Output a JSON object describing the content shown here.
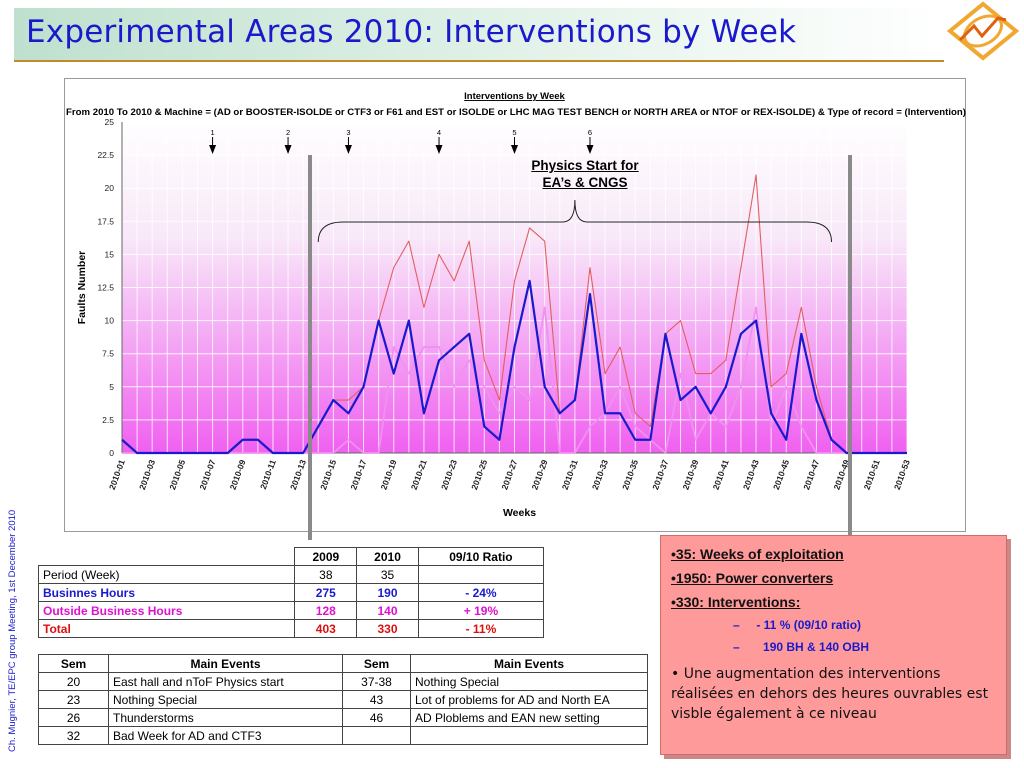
{
  "slide": {
    "title": "Experimental Areas 2010: Interventions by Week",
    "side_note": "Ch. Mugnier, TE/EPC group Meeting, 1st December 2010"
  },
  "colors": {
    "title": "#1a1acc",
    "series_2010": "#1a1acc",
    "series_total": "#e06060",
    "series_obh": "#f090f0",
    "notes_bg": "#ff9a9a"
  },
  "chart_data": {
    "type": "line",
    "title": "Interventions by Week",
    "subtitle": "From 2010 To 2010 & Machine = (AD or BOOSTER-ISOLDE or CTF3 or F61 and EST or ISOLDE or LHC MAG TEST BENCH or NORTH AREA or NTOF or REX-ISOLDE) & Type of record = (Intervention)",
    "xlabel": "Weeks",
    "ylabel": "Faults Number",
    "ylim": [
      0,
      25
    ],
    "yticks": [
      "0",
      "2.5",
      "5",
      "7.5",
      "10",
      "12.5",
      "15",
      "17.5",
      "20",
      "22.5",
      "25"
    ],
    "xtick_labels": [
      "2010-01",
      "2010-03",
      "2010-05",
      "2010-07",
      "2010-09",
      "2010-11",
      "2010-13",
      "2010-15",
      "2010-17",
      "2010-19",
      "2010-21",
      "2010-23",
      "2010-25",
      "2010-27",
      "2010-29",
      "2010-31",
      "2010-33",
      "2010-35",
      "2010-37",
      "2010-39",
      "2010-41",
      "2010-43",
      "2010-45",
      "2010-47",
      "2010-49",
      "2010-51",
      "2010-53"
    ],
    "x": [
      1,
      2,
      3,
      4,
      5,
      6,
      7,
      8,
      9,
      10,
      11,
      12,
      13,
      14,
      15,
      16,
      17,
      18,
      19,
      20,
      21,
      22,
      23,
      24,
      25,
      26,
      27,
      28,
      29,
      30,
      31,
      32,
      33,
      34,
      35,
      36,
      37,
      38,
      39,
      40,
      41,
      42,
      43,
      44,
      45,
      46,
      47,
      48,
      49,
      50,
      51,
      52,
      53
    ],
    "series": [
      {
        "name": "",
        "color": "#1a1acc",
        "width": 2.2,
        "values": [
          1,
          0,
          0,
          0,
          0,
          0,
          0,
          0,
          1,
          1,
          0,
          0,
          0,
          2,
          4,
          3,
          5,
          10,
          6,
          10,
          3,
          7,
          8,
          9,
          2,
          1,
          8,
          13,
          5,
          3,
          4,
          12,
          3,
          3,
          1,
          1,
          9,
          4,
          5,
          3,
          5,
          9,
          10,
          3,
          1,
          9,
          4,
          1,
          0,
          0,
          0,
          0,
          0
        ]
      },
      {
        "name": "",
        "color": "#e06060",
        "width": 1.1,
        "values": [
          1,
          0,
          0,
          0,
          0,
          0,
          0,
          0,
          1,
          1,
          0,
          0,
          0,
          2,
          4,
          4,
          5,
          10,
          14,
          16,
          11,
          15,
          13,
          16,
          7,
          4,
          13,
          17,
          16,
          3,
          4,
          14,
          6,
          8,
          3,
          2,
          9,
          10,
          6,
          6,
          7,
          14,
          21,
          5,
          6,
          11,
          5,
          1,
          0,
          0,
          0,
          0,
          0
        ]
      },
      {
        "name": "",
        "color": "#f090f0",
        "width": 1.8,
        "values": [
          0,
          0,
          0,
          0,
          0,
          0,
          0,
          0,
          0,
          0,
          0,
          0,
          0,
          0,
          0,
          1,
          0,
          0,
          8,
          6,
          8,
          8,
          5,
          7,
          5,
          3,
          5,
          4,
          11,
          0,
          0,
          2,
          3,
          5,
          2,
          1,
          0,
          6,
          1,
          3,
          2,
          5,
          11,
          2,
          5,
          2,
          0,
          0,
          0,
          0,
          0,
          0,
          0
        ]
      }
    ],
    "week_markers": [
      "1",
      "2",
      "3",
      "4",
      "5",
      "6"
    ],
    "week_marker_x": [
      7,
      12,
      16,
      22,
      27,
      32
    ],
    "grid": true,
    "annotation": "Physics Start for EA’s & CNGS"
  },
  "annotation": {
    "line1": "Physics Start for",
    "line2": "EA’s & CNGS"
  },
  "table1": {
    "headers": [
      "",
      "2009",
      "2010",
      "09/10 Ratio"
    ],
    "rows": [
      {
        "label": "Period (Week)",
        "v2009": "38",
        "v2010": "35",
        "ratio": ""
      },
      {
        "label": "Businnes Hours",
        "v2009": "275",
        "v2010": "190",
        "ratio": "- 24%"
      },
      {
        "label": "Outside Business Hours",
        "v2009": "128",
        "v2010": "140",
        "ratio": "+ 19%"
      },
      {
        "label": "Total",
        "v2009": "403",
        "v2010": "330",
        "ratio": "- 11%"
      }
    ]
  },
  "table2": {
    "headers": [
      "Sem",
      "Main Events",
      "Sem",
      "Main Events"
    ],
    "rows": [
      {
        "sem1": "20",
        "ev1": "East hall and nToF Physics start",
        "sem2": "37-38",
        "ev2": "Nothing Special"
      },
      {
        "sem1": "23",
        "ev1": "Nothing Special",
        "sem2": "43",
        "ev2": "Lot of problems for AD and North EA"
      },
      {
        "sem1": "26",
        "ev1": "Thunderstorms",
        "sem2": "46",
        "ev2": "AD Ploblems and EAN new setting"
      },
      {
        "sem1": "32",
        "ev1": "Bad Week for AD and CTF3",
        "sem2": "",
        "ev2": ""
      }
    ]
  },
  "notes": {
    "b1": "35:   Weeks of exploitation",
    "b2": "1950: Power converters",
    "b3": "330:  Interventions:",
    "s1": "- 11 %     (09/10 ratio)",
    "s2": "190 BH &  140 OBH",
    "para": "Une augmentation des interventions réalisées en dehors des heures ouvrables est visble également à ce niveau"
  }
}
